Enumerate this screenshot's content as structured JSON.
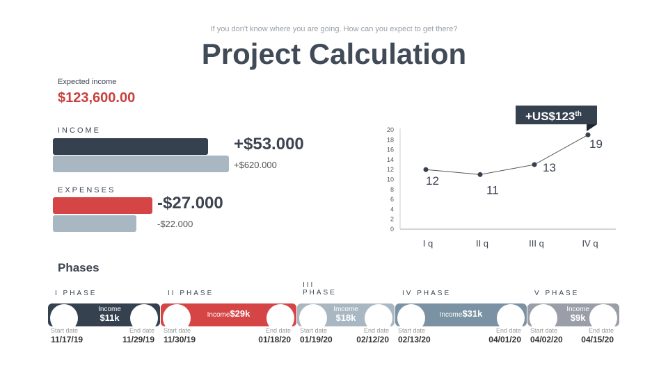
{
  "header": {
    "subtitle": "If you don't know where you are going. How can you expect to get there?",
    "title": "Project Calculation"
  },
  "expected": {
    "label": "Expected income",
    "value": "$123,600.00"
  },
  "income": {
    "label": "INCOME",
    "main": "+$53.000",
    "secondary": "+$620.000"
  },
  "expenses": {
    "label": "EXPENSES",
    "main": "-$27.000",
    "secondary": "-$22.000"
  },
  "colors": {
    "dark": "#364150",
    "red": "#d64545",
    "light": "#a9b7c2",
    "steel": "#7a92a3",
    "grey": "#9a9ea8"
  },
  "chart_data": {
    "type": "line",
    "categories": [
      "I q",
      "II q",
      "III q",
      "IV q"
    ],
    "values": [
      12,
      11,
      13,
      19
    ],
    "ylim": [
      0,
      20
    ],
    "yticks": [
      0,
      2,
      4,
      6,
      8,
      10,
      12,
      14,
      16,
      18,
      20
    ],
    "callout": "+US$123",
    "callout_sup": "th",
    "grid": false
  },
  "phases_title": "Phases",
  "phases": [
    {
      "name": "I PHASE",
      "income_label": "Income",
      "income": "$11k",
      "start_label": "Start date",
      "start": "11/17/19",
      "end_label": "End date",
      "end": "11/29/19"
    },
    {
      "name": "II PHASE",
      "income_label": "Income",
      "income": "$29k",
      "start_label": "Start date",
      "start": "11/30/19",
      "end_label": "End date",
      "end": "01/18/20"
    },
    {
      "name": "III PHASE",
      "income_label": "Imcome",
      "income": "$18k",
      "start_label": "Start date",
      "start": "01/19/20",
      "end_label": "End date",
      "end": "02/12/20"
    },
    {
      "name": "IV PHASE",
      "income_label": "Income",
      "income": "$31k",
      "start_label": "Start date",
      "start": "02/13/20",
      "end_label": "End date",
      "end": "04/01/20"
    },
    {
      "name": "V PHASE",
      "income_label": "Income",
      "income": "$9k",
      "start_label": "Start date",
      "start": "04/02/20",
      "end_label": "End date",
      "end": "04/15/20"
    }
  ]
}
